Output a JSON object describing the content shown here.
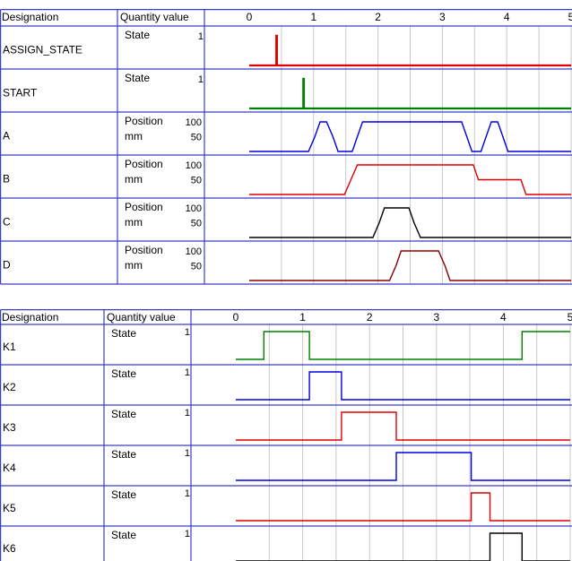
{
  "top_panel": {
    "headers": {
      "designation": "Designation",
      "quantity": "Quantity value"
    },
    "ticks": [
      "0",
      "1",
      "2",
      "3",
      "4",
      "5"
    ],
    "rows": [
      {
        "name": "ASSIGN_STATE",
        "qty": "State",
        "unit": "",
        "y_labels": [
          "1"
        ],
        "color": "#e00000",
        "kind": "state",
        "points": [
          [
            0,
            0
          ],
          [
            0.42,
            0
          ],
          [
            0.42,
            1
          ],
          [
            0.43,
            1
          ],
          [
            0.43,
            0
          ],
          [
            5,
            0
          ]
        ]
      },
      {
        "name": "START",
        "qty": "State",
        "unit": "",
        "y_labels": [
          "1"
        ],
        "color": "#008000",
        "kind": "state",
        "points": [
          [
            0,
            0
          ],
          [
            0.84,
            0
          ],
          [
            0.84,
            1
          ],
          [
            0.85,
            1
          ],
          [
            0.85,
            0
          ],
          [
            5,
            0
          ]
        ]
      },
      {
        "name": "A",
        "qty": "Position",
        "unit": "mm",
        "y_labels": [
          "100",
          "50"
        ],
        "color": "#0000e0",
        "kind": "position",
        "points": [
          [
            0,
            0
          ],
          [
            0.92,
            0
          ],
          [
            1.02,
            50
          ],
          [
            1.1,
            100
          ],
          [
            1.2,
            100
          ],
          [
            1.3,
            50
          ],
          [
            1.38,
            0
          ],
          [
            1.6,
            0
          ],
          [
            1.68,
            50
          ],
          [
            1.76,
            100
          ],
          [
            3.3,
            100
          ],
          [
            3.38,
            50
          ],
          [
            3.46,
            0
          ],
          [
            3.6,
            0
          ],
          [
            3.68,
            50
          ],
          [
            3.76,
            100
          ],
          [
            3.86,
            100
          ],
          [
            3.94,
            50
          ],
          [
            4.02,
            0
          ],
          [
            5,
            0
          ]
        ]
      },
      {
        "name": "B",
        "qty": "Position",
        "unit": "mm",
        "y_labels": [
          "100",
          "50"
        ],
        "color": "#e00000",
        "kind": "position",
        "points": [
          [
            0,
            0
          ],
          [
            1.48,
            0
          ],
          [
            1.58,
            50
          ],
          [
            1.68,
            100
          ],
          [
            3.48,
            100
          ],
          [
            3.56,
            50
          ],
          [
            4.22,
            50
          ],
          [
            4.3,
            0
          ],
          [
            5,
            0
          ]
        ]
      },
      {
        "name": "C",
        "qty": "Position",
        "unit": "mm",
        "y_labels": [
          "100",
          "50"
        ],
        "color": "#000000",
        "kind": "position",
        "points": [
          [
            0,
            0
          ],
          [
            1.92,
            0
          ],
          [
            2.02,
            50
          ],
          [
            2.1,
            100
          ],
          [
            2.48,
            100
          ],
          [
            2.56,
            50
          ],
          [
            2.66,
            0
          ],
          [
            5,
            0
          ]
        ]
      },
      {
        "name": "D",
        "qty": "Position",
        "unit": "mm",
        "y_labels": [
          "100",
          "50"
        ],
        "color": "#8b0000",
        "kind": "position",
        "points": [
          [
            0,
            0
          ],
          [
            2.18,
            0
          ],
          [
            2.28,
            50
          ],
          [
            2.36,
            100
          ],
          [
            2.94,
            100
          ],
          [
            3.04,
            50
          ],
          [
            3.12,
            0
          ],
          [
            5,
            0
          ]
        ]
      }
    ]
  },
  "bottom_panel": {
    "headers": {
      "designation": "Designation",
      "quantity": "Quantity value"
    },
    "ticks": [
      "0",
      "1",
      "2",
      "3",
      "4",
      "5"
    ],
    "rows": [
      {
        "name": "K1",
        "qty": "State",
        "unit": "",
        "y_labels": [
          "1"
        ],
        "color": "#008000",
        "kind": "state",
        "points": [
          [
            0,
            0
          ],
          [
            0.42,
            0
          ],
          [
            0.42,
            1
          ],
          [
            1.1,
            1
          ],
          [
            1.1,
            0
          ],
          [
            4.28,
            0
          ],
          [
            4.28,
            1
          ],
          [
            5,
            1
          ]
        ]
      },
      {
        "name": "K2",
        "qty": "State",
        "unit": "",
        "y_labels": [
          "1"
        ],
        "color": "#0000e0",
        "kind": "state",
        "points": [
          [
            0,
            0
          ],
          [
            1.1,
            0
          ],
          [
            1.1,
            1
          ],
          [
            1.58,
            1
          ],
          [
            1.58,
            0
          ],
          [
            5,
            0
          ]
        ]
      },
      {
        "name": "K3",
        "qty": "State",
        "unit": "",
        "y_labels": [
          "1"
        ],
        "color": "#e00000",
        "kind": "state",
        "points": [
          [
            0,
            0
          ],
          [
            1.58,
            0
          ],
          [
            1.58,
            1
          ],
          [
            2.4,
            1
          ],
          [
            2.4,
            0
          ],
          [
            5,
            0
          ]
        ]
      },
      {
        "name": "K4",
        "qty": "State",
        "unit": "",
        "y_labels": [
          "1"
        ],
        "color": "#0000e0",
        "kind": "state",
        "points": [
          [
            0,
            0
          ],
          [
            2.4,
            0
          ],
          [
            2.4,
            1
          ],
          [
            3.52,
            1
          ],
          [
            3.52,
            0
          ],
          [
            5,
            0
          ]
        ]
      },
      {
        "name": "K5",
        "qty": "State",
        "unit": "",
        "y_labels": [
          "1"
        ],
        "color": "#e00000",
        "kind": "state",
        "points": [
          [
            0,
            0
          ],
          [
            3.52,
            0
          ],
          [
            3.52,
            1
          ],
          [
            3.8,
            1
          ],
          [
            3.8,
            0
          ],
          [
            5,
            0
          ]
        ]
      },
      {
        "name": "K6",
        "qty": "State",
        "unit": "",
        "y_labels": [
          "1"
        ],
        "color": "#000000",
        "kind": "state",
        "points": [
          [
            0,
            0
          ],
          [
            3.8,
            0
          ],
          [
            3.8,
            1
          ],
          [
            4.28,
            1
          ],
          [
            4.28,
            0
          ],
          [
            5,
            0
          ]
        ]
      }
    ]
  }
}
